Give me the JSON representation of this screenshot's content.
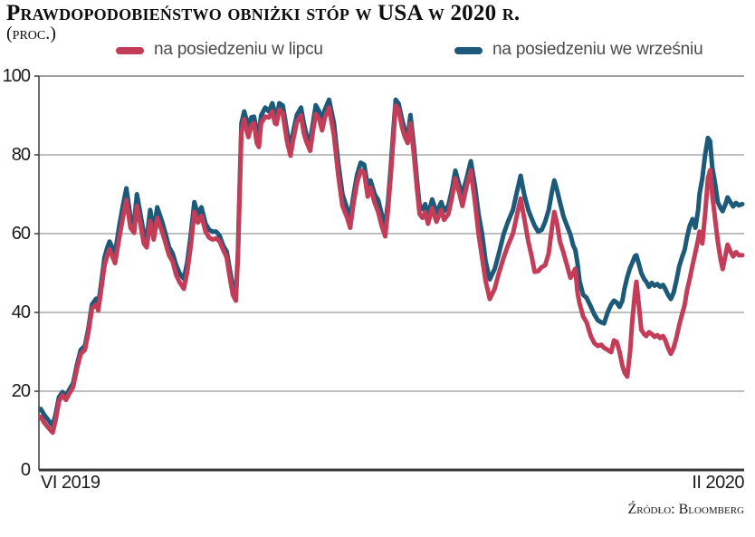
{
  "title": "Prawdopodobieństwo obniżki stóp w USA w 2020 r.",
  "subtitle": "(proc.)",
  "source": "Źródło: Bloomberg",
  "chart_data": {
    "type": "line",
    "title": "Prawdopodobieństwo obniżki stóp w USA w 2020 r.",
    "unit": "proc.",
    "ylim": [
      0,
      100
    ],
    "y_ticks": [
      0,
      20,
      40,
      60,
      80,
      100
    ],
    "grid": "horizontal",
    "legend_position": "top",
    "x_axis": {
      "start_label": "VI 2019",
      "end_label": "II 2020"
    },
    "x": [
      0,
      0.5,
      1.2,
      1.7,
      2.1,
      2.6,
      3.1,
      3.6,
      4.1,
      4.6,
      5.2,
      5.7,
      6.3,
      6.8,
      7.3,
      7.9,
      8.2,
      8.6,
      9.1,
      9.5,
      9.8,
      10.6,
      11.2,
      11.7,
      12.2,
      12.8,
      13.3,
      13.7,
      14.2,
      14.7,
      15.1,
      15.6,
      16.1,
      16.6,
      17.3,
      17.8,
      18.3,
      18.8,
      19.3,
      19.8,
      20.4,
      20.9,
      21.4,
      21.9,
      22.4,
      22.9,
      23.5,
      24,
      24.5,
      25,
      25.5,
      26,
      26.5,
      26.9,
      27.4,
      27.8,
      28.1,
      28.4,
      28.6,
      29,
      29.3,
      29.6,
      30,
      30.4,
      30.8,
      31.1,
      31.4,
      32,
      32.5,
      33,
      33.4,
      33.6,
      34,
      34.5,
      35.1,
      35.6,
      36,
      36.5,
      37.1,
      37.5,
      37.9,
      38.4,
      38.8,
      39.2,
      39.7,
      40.1,
      40.5,
      41.1,
      41.8,
      42.4,
      43,
      43.7,
      44.1,
      44.6,
      45.1,
      45.6,
      46.1,
      46.6,
      47,
      47.6,
      48.1,
      48.6,
      49.1,
      49.5,
      49.9,
      50.3,
      50.6,
      51,
      51.5,
      51.9,
      52.3,
      52.7,
      53.2,
      53.6,
      54,
      54.4,
      54.8,
      55.2,
      55.8,
      56.4,
      57.1,
      57.5,
      58.1,
      58.6,
      59.1,
      59.7,
      60.1,
      60.7,
      61.3,
      61.9,
      62.4,
      62.9,
      63.4,
      64,
      64.7,
      65.3,
      66,
      66.6,
      67.3,
      67.8,
      68.4,
      68.9,
      69.5,
      70,
      70.4,
      70.9,
      71.4,
      71.9,
      72.4,
      72.9,
      73.2,
      73.6,
      74,
      74.5,
      75,
      75.5,
      75.9,
      76.2,
      76.5,
      76.8,
      77.3,
      77.8,
      78.4,
      78.9,
      79.4,
      79.9,
      80.3,
      80.8,
      81.3,
      81.7,
      82.1,
      82.5,
      82.9,
      83.2,
      83.6,
      84,
      84.3,
      84.7,
      84.9,
      85.3,
      85.6,
      86,
      86.3,
      86.7,
      87.1,
      87.5,
      87.9,
      88.3,
      88.7,
      89,
      89.4,
      89.8,
      90.2,
      90.6,
      91,
      91.4,
      91.8,
      92.1,
      92.5,
      92.9,
      93.3,
      93.7,
      93.9,
      94.3,
      94.7,
      95.1,
      95.4,
      95.7,
      96.1,
      96.5,
      96.9,
      97.2,
      97.6,
      97.9,
      98.3,
      98.7,
      99.1,
      99.5,
      100
    ],
    "series": [
      {
        "name": "na posiedzeniu w lipcu",
        "color": "#c33d58",
        "values": [
          13.5,
          12,
          10.5,
          9.5,
          12.5,
          17.5,
          19,
          17.8,
          19.5,
          21,
          26,
          29.5,
          30.5,
          35,
          41,
          42,
          40.5,
          45.5,
          52,
          54.5,
          56,
          52.5,
          59,
          64,
          68.5,
          61.5,
          60.2,
          67,
          62.5,
          57.5,
          56.5,
          63.2,
          58.5,
          64,
          60.5,
          57.5,
          54.5,
          52.9,
          49.5,
          47.6,
          46,
          50.5,
          57,
          65.5,
          62.8,
          64.5,
          60.5,
          59,
          58.5,
          58.8,
          58,
          55.9,
          54,
          49.4,
          44.4,
          43,
          54,
          73,
          86,
          89,
          86.5,
          84.5,
          87.5,
          88,
          83,
          82,
          88,
          89.7,
          89.5,
          91,
          88,
          87.8,
          91.4,
          90.5,
          83.5,
          79.8,
          84,
          88.3,
          90,
          85.5,
          83.2,
          81,
          86,
          90.3,
          89,
          86.2,
          89.5,
          92,
          85,
          75,
          67,
          63.9,
          61.5,
          68,
          73,
          76,
          75.5,
          69.4,
          71.7,
          67.8,
          65.5,
          62,
          59.3,
          66,
          75,
          85,
          92.5,
          91.5,
          87,
          84.6,
          83,
          88,
          80,
          72,
          65,
          64,
          65.5,
          62.5,
          66.5,
          63,
          66,
          63.5,
          65,
          69,
          74,
          70,
          67,
          72,
          76,
          68,
          60,
          54,
          48,
          43.4,
          46,
          50,
          54,
          57,
          60,
          64,
          68.9,
          64,
          58,
          54,
          50.3,
          50.5,
          51.5,
          52,
          55,
          62,
          65.5,
          62.5,
          58,
          55.2,
          52,
          48.8,
          50,
          51.1,
          45.1,
          42.3,
          39,
          37.5,
          34,
          32.2,
          31.5,
          31.8,
          31,
          30.5,
          29.9,
          32.9,
          32.5,
          30,
          26.5,
          24.8,
          23.7,
          30,
          37.5,
          45,
          47.8,
          41,
          35.6,
          34.5,
          34,
          35,
          34.5,
          33.8,
          34.2,
          33.5,
          34,
          33,
          31,
          29.5,
          31,
          33.5,
          36.8,
          39.5,
          42,
          45.5,
          48.5,
          52,
          55.2,
          58.5,
          60.5,
          57.5,
          65,
          74,
          76.1,
          70,
          64,
          58,
          53.5,
          51,
          54.5,
          57.2,
          55.5,
          54.2,
          55.3,
          54.5,
          54.5
        ]
      },
      {
        "name": "na posiedzeniu we wrześniu",
        "color": "#1d5978",
        "values": [
          15.5,
          14,
          12.4,
          11.3,
          14,
          18.5,
          19.8,
          18.8,
          20.5,
          22,
          27,
          30.5,
          31.5,
          36,
          42,
          43.5,
          42,
          47,
          54,
          56.5,
          58,
          55,
          62,
          67,
          71.5,
          64,
          62.5,
          70,
          65,
          60,
          58.5,
          66,
          60.5,
          66.7,
          63,
          59.8,
          56.5,
          55,
          52,
          49.9,
          48.5,
          52.9,
          59.8,
          68,
          64.8,
          66.7,
          62.5,
          61,
          60.5,
          60.5,
          59.5,
          57,
          55.5,
          51.3,
          46.5,
          44,
          55,
          75,
          88,
          91,
          89,
          87.5,
          89.5,
          89.7,
          86,
          85,
          90,
          92,
          91,
          93.1,
          90.5,
          89,
          93.1,
          92.5,
          86,
          81.6,
          86,
          90.1,
          92,
          88,
          85,
          83.5,
          88,
          92.6,
          91,
          88.5,
          91.5,
          94,
          88,
          78,
          70,
          66.2,
          64,
          70,
          75,
          78,
          77.5,
          72,
          73.5,
          70,
          68.5,
          65,
          62,
          68,
          77,
          87,
          94,
          93,
          89,
          86.2,
          84.6,
          90.1,
          82,
          74,
          67.1,
          66.2,
          67.5,
          64.5,
          68.7,
          65.3,
          68,
          65.7,
          67.1,
          71,
          76,
          72,
          70,
          74,
          78.4,
          72,
          65,
          60,
          53,
          48.4,
          51,
          55,
          60,
          63,
          66,
          70,
          74.7,
          70,
          66,
          63.7,
          62,
          60.5,
          61,
          63,
          66,
          71,
          73.5,
          71,
          68,
          64.4,
          62,
          59.8,
          57,
          55.9,
          52.5,
          48,
          44.5,
          43.7,
          41.5,
          39.5,
          38,
          37.5,
          37.2,
          40,
          42,
          43,
          42.5,
          41.4,
          43,
          46,
          49,
          51.3,
          52.5,
          54.3,
          54.5,
          52,
          50,
          48.5,
          47.8,
          46.5,
          47.5,
          46.8,
          47.2,
          46.5,
          47,
          46,
          44.5,
          43.4,
          45,
          48,
          51.7,
          54,
          56,
          59,
          62,
          63.7,
          61.5,
          66,
          70,
          74,
          80,
          84.3,
          83.5,
          77,
          72.9,
          68,
          66.5,
          65.7,
          67.5,
          69.2,
          68,
          66.9,
          67.8,
          67.2,
          67.5
        ]
      }
    ]
  }
}
